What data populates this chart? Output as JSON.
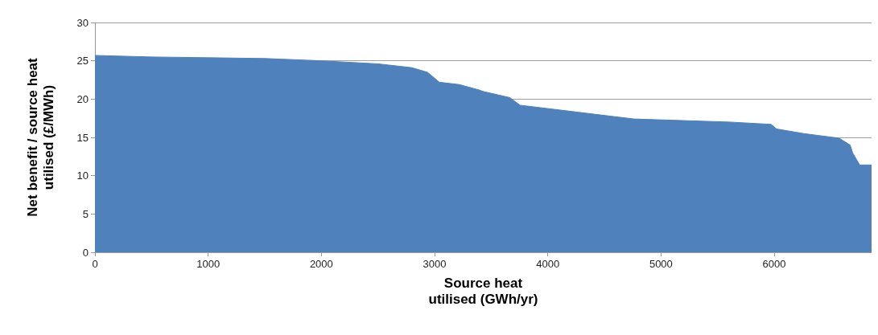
{
  "chart_data": {
    "type": "area",
    "xlabel": "Source heat\nutilised (GWh/yr)",
    "ylabel": "Net benefit / source heat\nutilised (£/MWh)",
    "x": [
      0,
      500,
      1000,
      1500,
      2000,
      2500,
      2800,
      2937,
      3042,
      3217,
      3392,
      3427,
      3664,
      3755,
      4259,
      4762,
      5608,
      5972,
      6021,
      6259,
      6573,
      6671,
      6692,
      6755,
      6860
    ],
    "series": [
      {
        "color": "#4f81bd",
        "values": [
          25.7,
          25.5,
          25.4,
          25.3,
          25.0,
          24.6,
          24.1,
          23.5,
          22.2,
          21.9,
          21.2,
          21.0,
          20.2,
          19.2,
          18.3,
          17.4,
          17.0,
          16.7,
          16.1,
          15.5,
          14.9,
          14.0,
          13.0,
          11.4,
          11.4
        ]
      }
    ],
    "xlim": [
      0,
      6860
    ],
    "xticks": [
      0,
      1000,
      2000,
      3000,
      4000,
      5000,
      6000
    ],
    "ylim": [
      0,
      30
    ],
    "yticks": [
      0,
      5,
      10,
      15,
      20,
      25,
      30
    ],
    "grid": "y",
    "marker": "none"
  }
}
